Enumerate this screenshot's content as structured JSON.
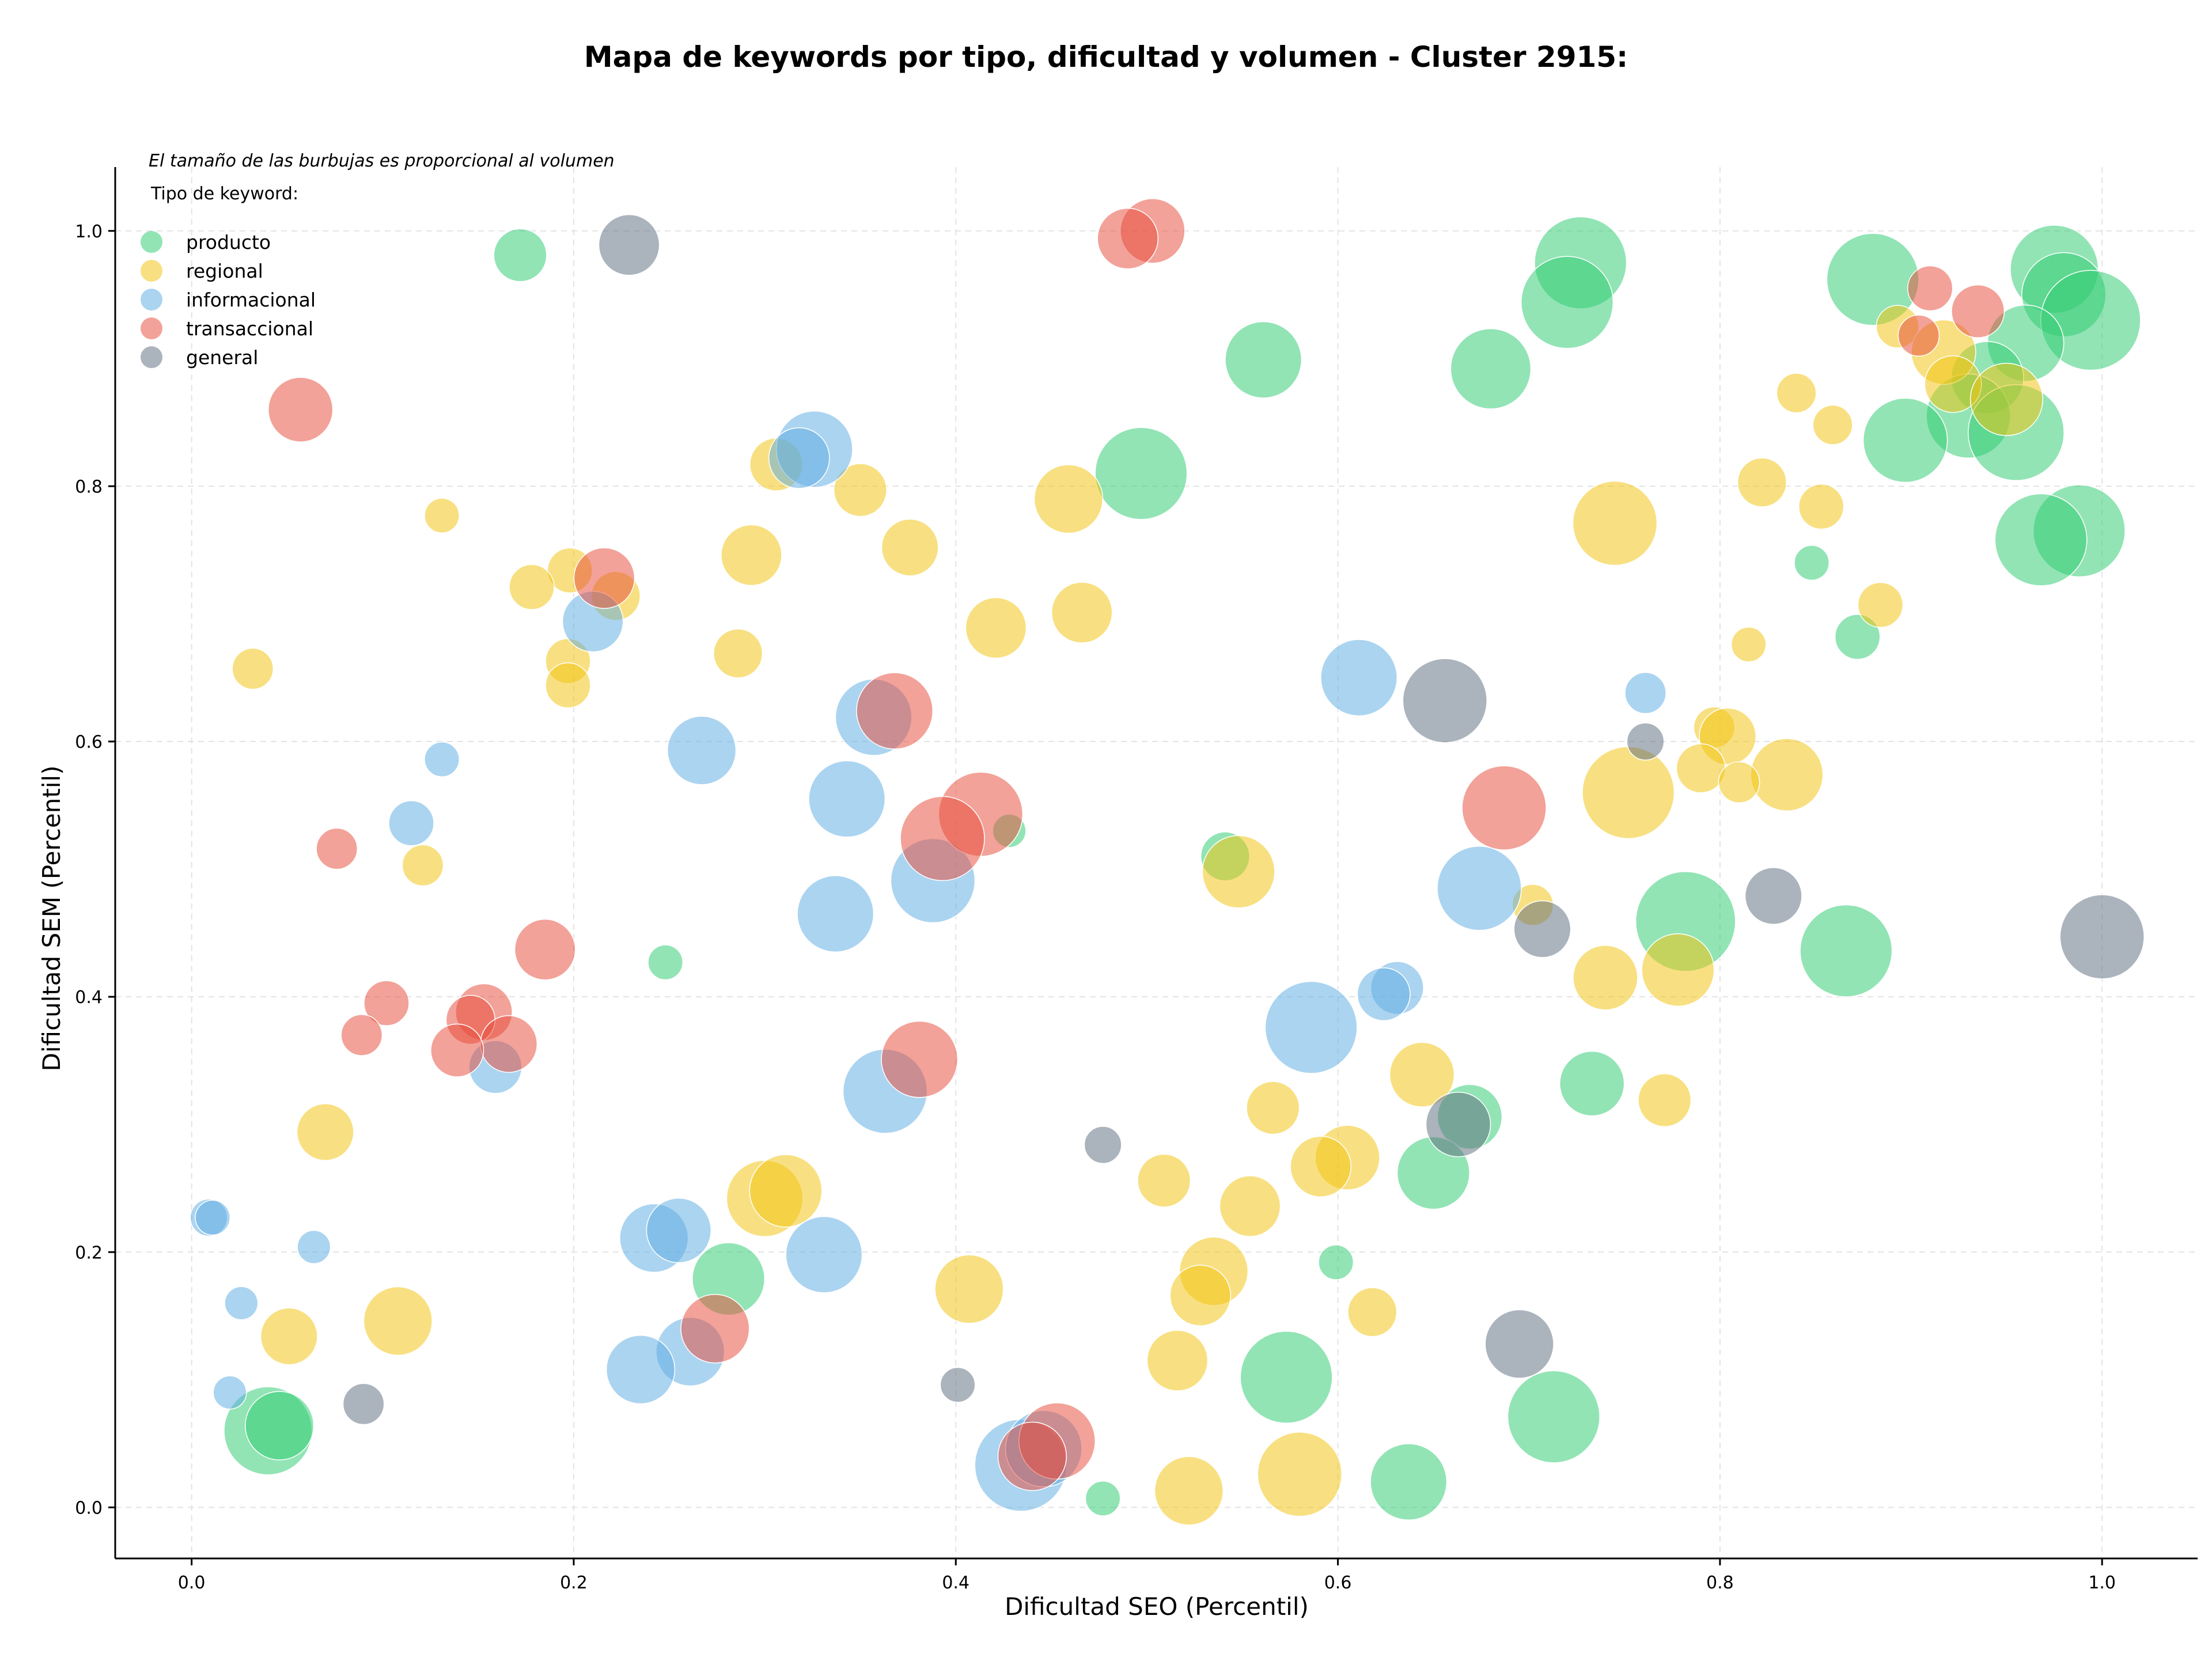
{
  "chart_data": {
    "type": "scatter",
    "title": "Mapa de keywords por tipo, dificultad y volumen - Cluster 2915:",
    "xlabel": "Dificultad SEO (Percentil)",
    "ylabel": "Dificultad SEM (Percentil)",
    "xlim": [
      -0.04,
      1.05
    ],
    "ylim": [
      -0.04,
      1.05
    ],
    "xticks": [
      0.0,
      0.2,
      0.4,
      0.6,
      0.8,
      1.0
    ],
    "yticks": [
      0.0,
      0.2,
      0.4,
      0.6,
      0.8,
      1.0
    ],
    "xtick_labels": [
      "0.0",
      "0.2",
      "0.4",
      "0.6",
      "0.8",
      "1.0"
    ],
    "ytick_labels": [
      "0.0",
      "0.2",
      "0.4",
      "0.6",
      "0.8",
      "1.0"
    ],
    "grid": true,
    "note": "El tamaño de las burbujas es proporcional al volumen",
    "legend_title": "Tipo de keyword:",
    "legend_position": "top-left",
    "series": [
      {
        "name": "producto",
        "color": "#2ecc71",
        "points": [
          [
            0.172,
            0.981,
            0.35
          ],
          [
            0.727,
            0.975,
            0.85
          ],
          [
            0.975,
            0.97,
            0.8
          ],
          [
            0.88,
            0.962,
            0.85
          ],
          [
            0.98,
            0.95,
            0.75
          ],
          [
            0.72,
            0.944,
            0.85
          ],
          [
            0.994,
            0.93,
            0.95
          ],
          [
            0.96,
            0.912,
            0.65
          ],
          [
            0.561,
            0.899,
            0.65
          ],
          [
            0.68,
            0.892,
            0.7
          ],
          [
            0.94,
            0.885,
            0.6
          ],
          [
            0.93,
            0.855,
            0.75
          ],
          [
            0.955,
            0.842,
            0.9
          ],
          [
            0.897,
            0.836,
            0.75
          ],
          [
            0.497,
            0.81,
            0.85
          ],
          [
            0.988,
            0.765,
            0.85
          ],
          [
            0.968,
            0.758,
            0.85
          ],
          [
            0.848,
            0.74,
            0.12
          ],
          [
            0.872,
            0.682,
            0.25
          ],
          [
            0.428,
            0.53,
            0.1
          ],
          [
            0.541,
            0.51,
            0.3
          ],
          [
            0.248,
            0.427,
            0.12
          ],
          [
            0.782,
            0.459,
            0.95
          ],
          [
            0.866,
            0.436,
            0.85
          ],
          [
            0.733,
            0.332,
            0.5
          ],
          [
            0.669,
            0.306,
            0.5
          ],
          [
            0.65,
            0.262,
            0.6
          ],
          [
            0.281,
            0.179,
            0.6
          ],
          [
            0.599,
            0.192,
            0.12
          ],
          [
            0.573,
            0.102,
            0.85
          ],
          [
            0.713,
            0.071,
            0.85
          ],
          [
            0.04,
            0.06,
            0.8
          ],
          [
            0.046,
            0.064,
            0.55
          ],
          [
            0.637,
            0.02,
            0.65
          ],
          [
            0.477,
            0.007,
            0.12
          ]
        ]
      },
      {
        "name": "regional",
        "color": "#f1c40f",
        "points": [
          [
            0.893,
            0.925,
            0.22
          ],
          [
            0.917,
            0.905,
            0.5
          ],
          [
            0.922,
            0.88,
            0.4
          ],
          [
            0.95,
            0.868,
            0.6
          ],
          [
            0.84,
            0.873,
            0.18
          ],
          [
            0.859,
            0.848,
            0.18
          ],
          [
            0.306,
            0.817,
            0.35
          ],
          [
            0.35,
            0.797,
            0.35
          ],
          [
            0.459,
            0.79,
            0.55
          ],
          [
            0.822,
            0.803,
            0.3
          ],
          [
            0.853,
            0.784,
            0.25
          ],
          [
            0.131,
            0.777,
            0.12
          ],
          [
            0.745,
            0.771,
            0.75
          ],
          [
            0.376,
            0.752,
            0.4
          ],
          [
            0.293,
            0.746,
            0.45
          ],
          [
            0.198,
            0.734,
            0.25
          ],
          [
            0.178,
            0.721,
            0.25
          ],
          [
            0.222,
            0.714,
            0.3
          ],
          [
            0.884,
            0.707,
            0.25
          ],
          [
            0.466,
            0.701,
            0.45
          ],
          [
            0.421,
            0.689,
            0.45
          ],
          [
            0.815,
            0.676,
            0.12
          ],
          [
            0.286,
            0.669,
            0.3
          ],
          [
            0.197,
            0.663,
            0.25
          ],
          [
            0.032,
            0.657,
            0.2
          ],
          [
            0.197,
            0.644,
            0.25
          ],
          [
            0.797,
            0.611,
            0.2
          ],
          [
            0.804,
            0.604,
            0.4
          ],
          [
            0.752,
            0.56,
            0.85
          ],
          [
            0.835,
            0.574,
            0.6
          ],
          [
            0.79,
            0.579,
            0.3
          ],
          [
            0.81,
            0.568,
            0.2
          ],
          [
            0.121,
            0.503,
            0.2
          ],
          [
            0.548,
            0.498,
            0.6
          ],
          [
            0.702,
            0.472,
            0.2
          ],
          [
            0.74,
            0.415,
            0.5
          ],
          [
            0.778,
            0.421,
            0.6
          ],
          [
            0.644,
            0.339,
            0.5
          ],
          [
            0.566,
            0.313,
            0.35
          ],
          [
            0.771,
            0.319,
            0.35
          ],
          [
            0.07,
            0.294,
            0.4
          ],
          [
            0.605,
            0.274,
            0.5
          ],
          [
            0.591,
            0.267,
            0.45
          ],
          [
            0.3,
            0.242,
            0.65
          ],
          [
            0.311,
            0.248,
            0.6
          ],
          [
            0.509,
            0.256,
            0.35
          ],
          [
            0.554,
            0.236,
            0.45
          ],
          [
            0.535,
            0.185,
            0.55
          ],
          [
            0.528,
            0.166,
            0.45
          ],
          [
            0.407,
            0.171,
            0.55
          ],
          [
            0.618,
            0.153,
            0.3
          ],
          [
            0.108,
            0.146,
            0.55
          ],
          [
            0.051,
            0.134,
            0.4
          ],
          [
            0.516,
            0.115,
            0.45
          ],
          [
            0.58,
            0.026,
            0.75
          ],
          [
            0.522,
            0.013,
            0.55
          ]
        ]
      },
      {
        "name": "informacional",
        "color": "#5dade2",
        "points": [
          [
            0.326,
            0.829,
            0.65
          ],
          [
            0.318,
            0.822,
            0.45
          ],
          [
            0.21,
            0.694,
            0.45
          ],
          [
            0.611,
            0.65,
            0.65
          ],
          [
            0.761,
            0.638,
            0.2
          ],
          [
            0.357,
            0.619,
            0.65
          ],
          [
            0.267,
            0.593,
            0.55
          ],
          [
            0.131,
            0.586,
            0.12
          ],
          [
            0.343,
            0.555,
            0.65
          ],
          [
            0.115,
            0.536,
            0.25
          ],
          [
            0.388,
            0.491,
            0.75
          ],
          [
            0.674,
            0.485,
            0.75
          ],
          [
            0.337,
            0.465,
            0.65
          ],
          [
            0.631,
            0.407,
            0.35
          ],
          [
            0.624,
            0.402,
            0.35
          ],
          [
            0.586,
            0.376,
            0.85
          ],
          [
            0.159,
            0.345,
            0.35
          ],
          [
            0.363,
            0.326,
            0.75
          ],
          [
            0.009,
            0.227,
            0.15
          ],
          [
            0.011,
            0.227,
            0.12
          ],
          [
            0.064,
            0.204,
            0.1
          ],
          [
            0.242,
            0.211,
            0.55
          ],
          [
            0.255,
            0.217,
            0.5
          ],
          [
            0.331,
            0.198,
            0.65
          ],
          [
            0.026,
            0.16,
            0.1
          ],
          [
            0.261,
            0.122,
            0.55
          ],
          [
            0.235,
            0.108,
            0.55
          ],
          [
            0.02,
            0.09,
            0.1
          ],
          [
            0.434,
            0.033,
            0.85
          ],
          [
            0.446,
            0.046,
            0.65
          ]
        ]
      },
      {
        "name": "transaccional",
        "color": "#e74c3c",
        "points": [
          [
            0.503,
            1.0,
            0.5
          ],
          [
            0.49,
            0.994,
            0.45
          ],
          [
            0.91,
            0.955,
            0.25
          ],
          [
            0.935,
            0.937,
            0.35
          ],
          [
            0.904,
            0.918,
            0.2
          ],
          [
            0.057,
            0.86,
            0.5
          ],
          [
            0.216,
            0.728,
            0.45
          ],
          [
            0.368,
            0.624,
            0.65
          ],
          [
            0.687,
            0.548,
            0.75
          ],
          [
            0.413,
            0.543,
            0.75
          ],
          [
            0.393,
            0.524,
            0.75
          ],
          [
            0.076,
            0.516,
            0.2
          ],
          [
            0.185,
            0.437,
            0.45
          ],
          [
            0.102,
            0.395,
            0.25
          ],
          [
            0.153,
            0.388,
            0.4
          ],
          [
            0.146,
            0.382,
            0.3
          ],
          [
            0.089,
            0.37,
            0.2
          ],
          [
            0.166,
            0.363,
            0.4
          ],
          [
            0.139,
            0.358,
            0.35
          ],
          [
            0.381,
            0.351,
            0.65
          ],
          [
            0.274,
            0.14,
            0.55
          ],
          [
            0.453,
            0.052,
            0.65
          ],
          [
            0.44,
            0.04,
            0.55
          ]
        ]
      },
      {
        "name": "general",
        "color": "#5d6d7e",
        "points": [
          [
            0.229,
            0.989,
            0.45
          ],
          [
            0.656,
            0.632,
            0.75
          ],
          [
            0.761,
            0.6,
            0.15
          ],
          [
            0.828,
            0.479,
            0.4
          ],
          [
            0.707,
            0.453,
            0.4
          ],
          [
            1.0,
            0.447,
            0.75
          ],
          [
            0.663,
            0.3,
            0.5
          ],
          [
            0.477,
            0.284,
            0.15
          ],
          [
            0.695,
            0.128,
            0.55
          ],
          [
            0.401,
            0.096,
            0.12
          ],
          [
            0.09,
            0.081,
            0.2
          ]
        ]
      }
    ]
  }
}
